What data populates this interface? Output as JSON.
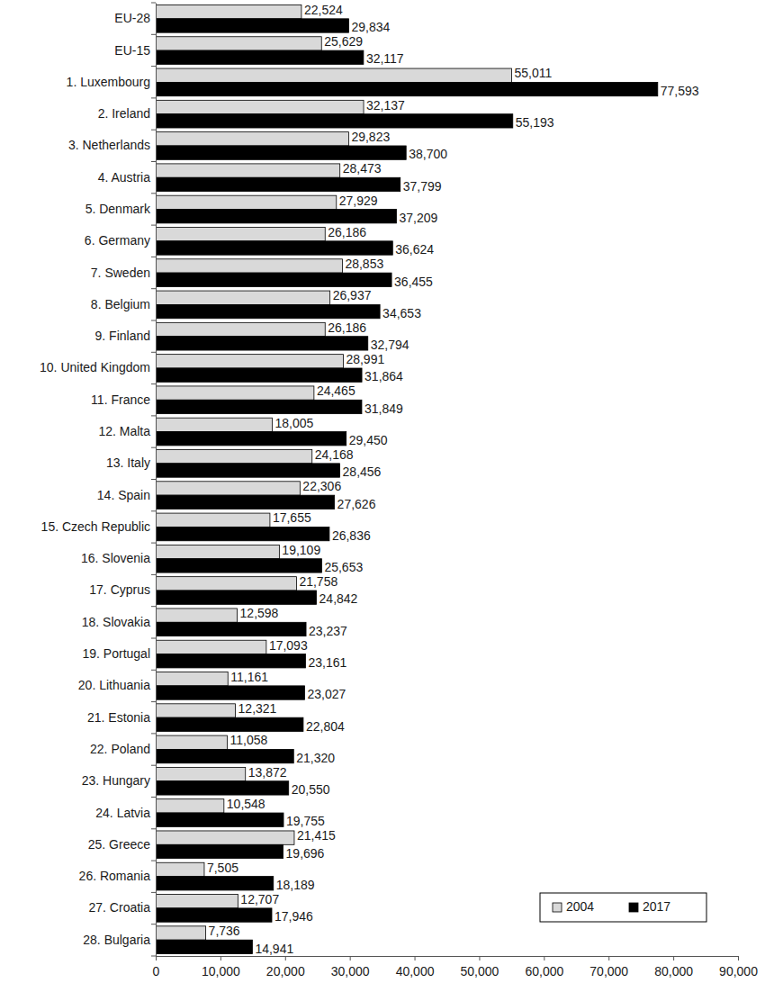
{
  "chart_data": {
    "type": "bar",
    "orientation": "horizontal",
    "data_labels": true,
    "legend": "bottom-right",
    "grid": false,
    "categories": [
      "EU-28",
      "EU-15",
      "1. Luxembourg",
      "2. Ireland",
      "3. Netherlands",
      "4. Austria",
      "5. Denmark",
      "6. Germany",
      "7. Sweden",
      "8. Belgium",
      "9. Finland",
      "10. United Kingdom",
      "11. France",
      "12. Malta",
      "13. Italy",
      "14. Spain",
      "15. Czech Republic",
      "16. Slovenia",
      "17. Cyprus",
      "18. Slovakia",
      "19. Portugal",
      "20. Lithuania",
      "21. Estonia",
      "22. Poland",
      "23. Hungary",
      "24. Latvia",
      "25. Greece",
      "26. Romania",
      "27. Croatia",
      "28. Bulgaria"
    ],
    "series": [
      {
        "name": "2004",
        "color": "#d9d9d9",
        "values": [
          22524,
          25629,
          55011,
          32137,
          29823,
          28473,
          27929,
          26186,
          28853,
          26937,
          26186,
          28991,
          24465,
          18005,
          24168,
          22306,
          17655,
          19109,
          21758,
          12598,
          17093,
          11161,
          12321,
          11058,
          13872,
          10548,
          21415,
          7505,
          12707,
          7736
        ],
        "value_labels": [
          "22,524",
          "25,629",
          "55,011",
          "32,137",
          "29,823",
          "28,473",
          "27,929",
          "26,186",
          "28,853",
          "26,937",
          "26,186",
          "28,991",
          "24,465",
          "18,005",
          "24,168",
          "22,306",
          "17,655",
          "19,109",
          "21,758",
          "12,598",
          "17,093",
          "11,161",
          "12,321",
          "11,058",
          "13,872",
          "10,548",
          "21,415",
          "7,505",
          "12,707",
          "7,736"
        ]
      },
      {
        "name": "2017",
        "color": "#000000",
        "values": [
          29834,
          32117,
          77593,
          55193,
          38700,
          37799,
          37209,
          36624,
          36455,
          34653,
          32794,
          31864,
          31849,
          29450,
          28456,
          27626,
          26836,
          25653,
          24842,
          23237,
          23161,
          23027,
          22804,
          21320,
          20550,
          19755,
          19696,
          18189,
          17946,
          14941
        ],
        "value_labels": [
          "29,834",
          "32,117",
          "77,593",
          "55,193",
          "38,700",
          "37,799",
          "37,209",
          "36,624",
          "36,455",
          "34,653",
          "32,794",
          "31,864",
          "31,849",
          "29,450",
          "28,456",
          "27,626",
          "26,836",
          "25,653",
          "24,842",
          "23,237",
          "23,161",
          "23,027",
          "22,804",
          "21,320",
          "20,550",
          "19,755",
          "19,696",
          "18,189",
          "17,946",
          "14,941"
        ]
      }
    ],
    "xlim": [
      0,
      90000
    ],
    "xticks": [
      {
        "value": 0,
        "label": "0"
      },
      {
        "value": 10000,
        "label": "10,000"
      },
      {
        "value": 20000,
        "label": "20,000"
      },
      {
        "value": 30000,
        "label": "30,000"
      },
      {
        "value": 40000,
        "label": "40,000"
      },
      {
        "value": 50000,
        "label": "50,000"
      },
      {
        "value": 60000,
        "label": "60,000"
      },
      {
        "value": 70000,
        "label": "70,000"
      },
      {
        "value": 80000,
        "label": "80,000"
      },
      {
        "value": 90000,
        "label": "90,000"
      }
    ]
  }
}
